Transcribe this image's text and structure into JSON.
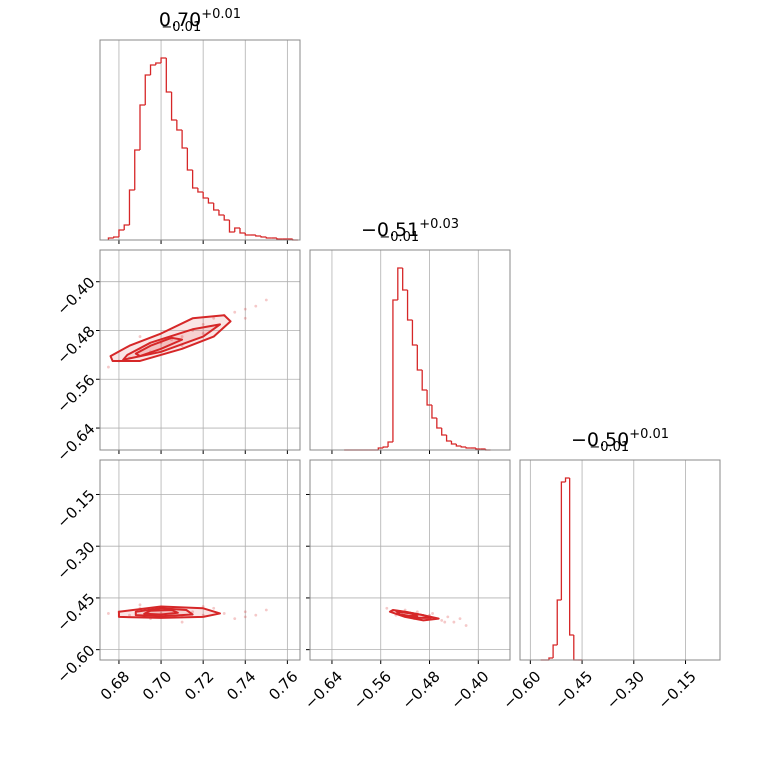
{
  "chart_data": {
    "type": "corner",
    "color": "#d62728",
    "grid": true,
    "params": [
      {
        "title": "0.70",
        "title_upper": "+0.01",
        "title_lower": "−0.01",
        "lim": [
          0.671,
          0.766
        ],
        "ticks": [
          {
            "value": 0.68,
            "label": "0.68"
          },
          {
            "value": 0.7,
            "label": "0.70"
          },
          {
            "value": 0.72,
            "label": "0.72"
          },
          {
            "value": 0.74,
            "label": "0.74"
          },
          {
            "value": 0.76,
            "label": "0.76"
          }
        ],
        "hist_ylim": [
          0,
          200
        ],
        "bins": [
          0.675,
          0.6775,
          0.68,
          0.6825,
          0.685,
          0.6875,
          0.69,
          0.6925,
          0.695,
          0.6975,
          0.7,
          0.7025,
          0.705,
          0.7075,
          0.71,
          0.7125,
          0.715,
          0.7175,
          0.72,
          0.7225,
          0.725,
          0.7275,
          0.73,
          0.7325,
          0.735,
          0.7375,
          0.74,
          0.7425,
          0.745,
          0.7475,
          0.75,
          0.7525,
          0.755,
          0.7575,
          0.76,
          0.7625,
          0.765
        ],
        "counts": [
          2,
          3,
          10,
          15,
          50,
          90,
          135,
          165,
          175,
          177,
          182,
          148,
          120,
          110,
          92,
          70,
          52,
          48,
          42,
          37,
          30,
          25,
          20,
          8,
          12,
          7,
          5,
          5,
          4,
          3,
          2,
          2,
          1,
          1,
          1,
          0
        ]
      },
      {
        "title": "−0.51",
        "title_upper": "+0.03",
        "title_lower": "−0.01",
        "lim": [
          -0.676,
          -0.348
        ],
        "ticks": [
          {
            "value": -0.64,
            "label": "−0.64"
          },
          {
            "value": -0.56,
            "label": "−0.56"
          },
          {
            "value": -0.48,
            "label": "−0.48"
          },
          {
            "value": -0.4,
            "label": "−0.40"
          }
        ],
        "hist_ylim": [
          0,
          200
        ],
        "bins": [
          -0.62,
          -0.612,
          -0.604,
          -0.596,
          -0.588,
          -0.58,
          -0.572,
          -0.564,
          -0.556,
          -0.548,
          -0.54,
          -0.532,
          -0.524,
          -0.516,
          -0.508,
          -0.5,
          -0.492,
          -0.484,
          -0.476,
          -0.468,
          -0.46,
          -0.452,
          -0.444,
          -0.436,
          -0.428,
          -0.42,
          -0.412,
          -0.404,
          -0.396,
          -0.388,
          -0.38
        ],
        "counts": [
          0,
          0,
          0,
          0,
          0,
          0,
          0,
          2,
          3,
          8,
          150,
          182,
          160,
          130,
          105,
          80,
          60,
          45,
          32,
          22,
          15,
          9,
          6,
          4,
          3,
          2,
          2,
          1,
          1,
          0
        ]
      },
      {
        "title": "−0.50",
        "title_upper": "+0.01",
        "title_lower": "−0.01",
        "lim": [
          -0.63,
          -0.05
        ],
        "ticks": [
          {
            "value": -0.6,
            "label": "−0.60"
          },
          {
            "value": -0.45,
            "label": "−0.45"
          },
          {
            "value": -0.3,
            "label": "−0.30"
          },
          {
            "value": -0.15,
            "label": "−0.15"
          }
        ],
        "hist_ylim": [
          0,
          200
        ],
        "bins": [
          -0.57,
          -0.558,
          -0.546,
          -0.534,
          -0.522,
          -0.51,
          -0.498,
          -0.486,
          -0.474,
          -0.462,
          -0.45
        ],
        "counts": [
          0,
          0,
          2,
          15,
          60,
          178,
          182,
          25,
          0,
          0
        ]
      }
    ],
    "pairs": [
      {
        "x": [
          0.68,
          0.685,
          0.69,
          0.695,
          0.7,
          0.705,
          0.71,
          0.715,
          0.72,
          0.725,
          0.73,
          0.735,
          0.74,
          0.745,
          0.75,
          0.675,
          0.69,
          0.71,
          0.72,
          0.74
        ],
        "y": [
          -0.53,
          -0.525,
          -0.51,
          -0.515,
          -0.5,
          -0.495,
          -0.49,
          -0.48,
          -0.47,
          -0.46,
          -0.455,
          -0.45,
          -0.445,
          -0.44,
          -0.43,
          -0.54,
          -0.49,
          -0.505,
          -0.485,
          -0.46
        ],
        "contours": [
          {
            "x": [
              0.677,
              0.69,
              0.71,
              0.725,
              0.733,
              0.73,
              0.715,
              0.7,
              0.685,
              0.676
            ],
            "y": [
              -0.53,
              -0.53,
              -0.51,
              -0.49,
              -0.465,
              -0.455,
              -0.46,
              -0.485,
              -0.505,
              -0.522
            ]
          },
          {
            "x": [
              0.682,
              0.7,
              0.72,
              0.728,
              0.715,
              0.695,
              0.684
            ],
            "y": [
              -0.528,
              -0.515,
              -0.49,
              -0.47,
              -0.478,
              -0.5,
              -0.52
            ]
          },
          {
            "x": [
              0.69,
              0.7,
              0.71,
              0.705,
              0.695,
              0.688
            ],
            "y": [
              -0.522,
              -0.51,
              -0.495,
              -0.492,
              -0.505,
              -0.518
            ]
          }
        ]
      },
      {
        "x": [
          0.68,
          0.685,
          0.69,
          0.695,
          0.7,
          0.705,
          0.71,
          0.715,
          0.72,
          0.725,
          0.73,
          0.735,
          0.74,
          0.745,
          0.75,
          0.675,
          0.69,
          0.71,
          0.72,
          0.74
        ],
        "y": [
          -0.49,
          -0.5,
          -0.48,
          -0.51,
          -0.495,
          -0.485,
          -0.505,
          -0.49,
          -0.5,
          -0.48,
          -0.495,
          -0.51,
          -0.49,
          -0.5,
          -0.485,
          -0.495,
          -0.47,
          -0.52,
          -0.475,
          -0.505
        ],
        "contours": [
          {
            "x": [
              0.68,
              0.7,
              0.72,
              0.728,
              0.72,
              0.7,
              0.68
            ],
            "y": [
              -0.505,
              -0.508,
              -0.505,
              -0.495,
              -0.48,
              -0.475,
              -0.49
            ]
          },
          {
            "x": [
              0.688,
              0.7,
              0.715,
              0.712,
              0.7,
              0.688
            ],
            "y": [
              -0.5,
              -0.503,
              -0.498,
              -0.485,
              -0.48,
              -0.49
            ]
          },
          {
            "x": [
              0.692,
              0.7,
              0.708,
              0.705,
              0.695
            ],
            "y": [
              -0.496,
              -0.498,
              -0.493,
              -0.485,
              -0.487
            ]
          }
        ]
      },
      {
        "x": [
          -0.55,
          -0.54,
          -0.53,
          -0.52,
          -0.51,
          -0.5,
          -0.49,
          -0.48,
          -0.47,
          -0.46,
          -0.45,
          -0.44,
          -0.43,
          -0.42,
          -0.535,
          -0.505,
          -0.475,
          -0.455
        ],
        "y": [
          -0.48,
          -0.49,
          -0.495,
          -0.485,
          -0.5,
          -0.49,
          -0.505,
          -0.5,
          -0.51,
          -0.515,
          -0.505,
          -0.52,
          -0.51,
          -0.53,
          -0.5,
          -0.51,
          -0.495,
          -0.52
        ],
        "contours": [
          {
            "x": [
              -0.54,
              -0.52,
              -0.49,
              -0.465,
              -0.49,
              -0.52,
              -0.545
            ],
            "y": [
              -0.485,
              -0.49,
              -0.5,
              -0.51,
              -0.515,
              -0.505,
              -0.49
            ]
          },
          {
            "x": [
              -0.535,
              -0.515,
              -0.49,
              -0.478,
              -0.5,
              -0.53
            ],
            "y": [
              -0.487,
              -0.492,
              -0.5,
              -0.508,
              -0.508,
              -0.497
            ]
          },
          {
            "x": [
              -0.53,
              -0.51,
              -0.5,
              -0.515,
              -0.53
            ],
            "y": [
              -0.49,
              -0.495,
              -0.503,
              -0.502,
              -0.497
            ]
          }
        ]
      }
    ]
  }
}
